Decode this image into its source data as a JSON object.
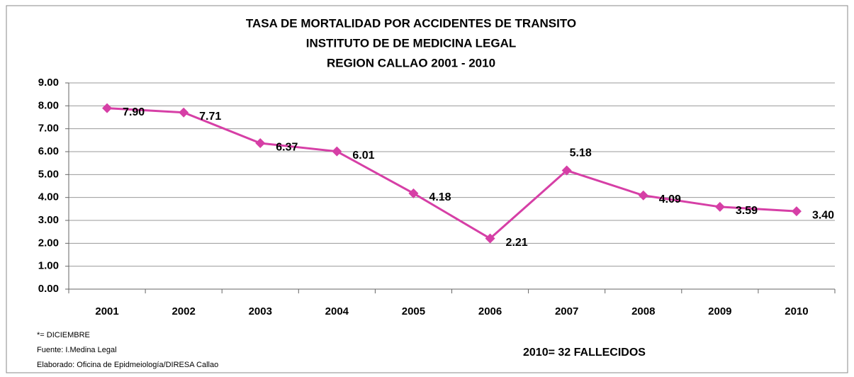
{
  "chart_data": {
    "type": "line",
    "title": [
      "TASA DE MORTALIDAD  POR ACCIDENTES DE TRANSITO",
      "INSTITUTO DE DE MEDICINA LEGAL",
      "REGION  CALLAO 2001 - 2010"
    ],
    "categories": [
      "2001",
      "2002",
      "2003",
      "2004",
      "2005",
      "2006",
      "2007",
      "2008",
      "2009",
      "2010"
    ],
    "values": [
      7.9,
      7.71,
      6.37,
      6.01,
      4.18,
      2.21,
      5.18,
      4.09,
      3.59,
      3.4
    ],
    "value_labels": [
      "7.90",
      "7.71",
      "6.37",
      "6.01",
      "4.18",
      "2.21",
      "5.18",
      "4.09",
      "3.59",
      "3.40"
    ],
    "color": "#d63fa6",
    "ylim": [
      0,
      9
    ],
    "yticks": [
      {
        "value": 0,
        "label": "0.00"
      },
      {
        "value": 1,
        "label": "1.00"
      },
      {
        "value": 2,
        "label": "2.00"
      },
      {
        "value": 3,
        "label": "3.00"
      },
      {
        "value": 4,
        "label": "4.00"
      },
      {
        "value": 5,
        "label": "5.00"
      },
      {
        "value": 6,
        "label": "6.00"
      },
      {
        "value": 7,
        "label": "7.00"
      },
      {
        "value": 8,
        "label": "8.00"
      },
      {
        "value": 9,
        "label": "9.00"
      }
    ],
    "grid": true,
    "notes": [
      "*= DICIEMBRE",
      "Fuente: I.Medina Legal",
      "Elaborado: Oficina de Epidmeiología/DIRESA  Callao"
    ],
    "annotation": "2010= 32 FALLECIDOS"
  }
}
